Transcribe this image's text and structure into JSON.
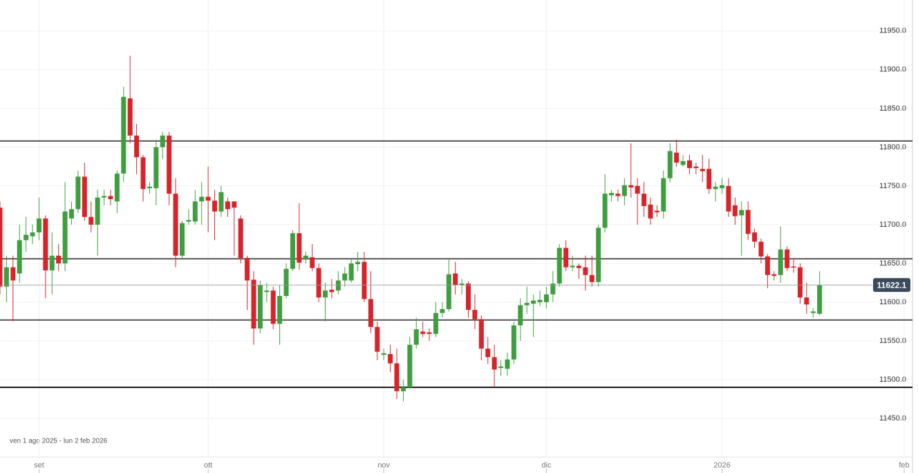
{
  "chart_data": {
    "type": "candlestick",
    "date_range": "ven 1 ago 2025 - lun 2 feb 2026",
    "categories": [
      null,
      null,
      null,
      null,
      null,
      null,
      "set",
      null,
      null,
      null,
      null,
      null,
      null,
      null,
      null,
      null,
      null,
      null,
      null,
      null,
      null,
      null,
      null,
      null,
      null,
      null,
      null,
      null,
      null,
      null,
      null,
      null,
      "ott",
      null,
      null,
      null,
      null,
      null,
      null,
      null,
      null,
      null,
      null,
      null,
      null,
      null,
      null,
      null,
      null,
      null,
      null,
      null,
      null,
      null,
      null,
      null,
      null,
      null,
      null,
      "nov",
      null,
      null,
      null,
      null,
      null,
      null,
      null,
      null,
      null,
      null,
      null,
      null,
      null,
      null,
      null,
      null,
      null,
      null,
      null,
      null,
      null,
      null,
      null,
      null,
      "dic",
      null,
      null,
      null,
      null,
      null,
      null,
      null,
      null,
      null,
      null,
      null,
      null,
      null,
      null,
      null,
      null,
      null,
      null,
      null,
      null,
      null,
      null,
      null,
      null,
      null,
      null,
      "2026",
      null,
      null,
      null,
      null,
      null,
      null,
      null,
      null,
      null,
      null,
      null,
      null,
      null,
      null,
      null,
      null,
      null,
      null,
      null,
      null,
      null,
      null,
      null,
      null,
      null,
      null,
      null,
      "feb"
    ],
    "open": [
      11722,
      11620,
      11645,
      11637,
      11680,
      11685,
      11690,
      11708,
      11641,
      11660,
      11650,
      11708,
      11720,
      11762,
      11710,
      11700,
      11735,
      11737,
      11730,
      11766,
      11863,
      11815,
      11787,
      11747,
      11747,
      11800,
      11815,
      11740,
      11660,
      11704,
      11704,
      11730,
      11736,
      11731,
      11717,
      11730,
      11730,
      11708,
      11657,
      11629,
      11566,
      11613,
      11615,
      11572,
      11608,
      11643,
      11689,
      11656,
      11658,
      11644,
      11606,
      11616,
      11615,
      11628,
      11628,
      11649,
      11652,
      11604,
      11568,
      11532,
      11533,
      11521,
      11485,
      11490,
      11545,
      11562,
      11561,
      11559,
      11586,
      11591,
      11637,
      11622,
      11624,
      11590,
      11578,
      11540,
      11529,
      11515,
      11514,
      11526,
      11570,
      11596,
      11598,
      11600,
      11600,
      11610,
      11624,
      11670,
      11645,
      11647,
      11645,
      11635,
      11626,
      11696,
      11738,
      11740,
      11737,
      11751,
      11750,
      11740,
      11726,
      11718,
      11717,
      11760,
      11793,
      11777,
      11783,
      11775,
      11772,
      11772,
      11746,
      11747,
      11750,
      11725,
      11712,
      11719,
      11690,
      11678,
      11659,
      11636,
      11635,
      11668,
      11646,
      11645,
      11606,
      11586,
      11585,
      null,
      null,
      null,
      null,
      null,
      null,
      null,
      null,
      null,
      null,
      null,
      null,
      null
    ],
    "high": [
      11730,
      11660,
      11660,
      11700,
      11710,
      11700,
      11735,
      11712,
      11690,
      11675,
      11755,
      11730,
      11770,
      11780,
      11730,
      11745,
      11745,
      11745,
      11770,
      11878,
      11918,
      11830,
      11790,
      11755,
      11810,
      11820,
      11820,
      11760,
      11705,
      11720,
      11745,
      11755,
      11775,
      11745,
      11750,
      11735,
      11730,
      11712,
      11660,
      11640,
      11628,
      11625,
      11620,
      11622,
      11650,
      11693,
      11728,
      11665,
      11675,
      11650,
      11625,
      11630,
      11640,
      11645,
      11655,
      11665,
      11665,
      11640,
      11575,
      11540,
      11545,
      11540,
      11500,
      11555,
      11580,
      11575,
      11566,
      11600,
      11600,
      11655,
      11652,
      11630,
      11627,
      11610,
      11583,
      11555,
      11545,
      11525,
      11535,
      11575,
      11605,
      11620,
      11610,
      11615,
      11620,
      11640,
      11675,
      11680,
      11660,
      11650,
      11660,
      11660,
      11700,
      11765,
      11745,
      11745,
      11760,
      11805,
      11760,
      11755,
      11735,
      11725,
      11770,
      11805,
      11810,
      11790,
      11790,
      11780,
      11790,
      11785,
      11755,
      11760,
      11760,
      11735,
      11730,
      11730,
      11695,
      11682,
      11662,
      11640,
      11698,
      11672,
      11655,
      11650,
      11625,
      11592,
      11640,
      null,
      null,
      null,
      null,
      null,
      null,
      null,
      null,
      null,
      null,
      null,
      null,
      null
    ],
    "low": [
      11610,
      11600,
      11575,
      11625,
      11665,
      11675,
      11680,
      11605,
      11610,
      11640,
      11640,
      11700,
      11715,
      11705,
      11690,
      11660,
      11725,
      11725,
      11715,
      11755,
      11805,
      11765,
      11730,
      11740,
      11725,
      11785,
      11725,
      11645,
      11655,
      11700,
      11700,
      11700,
      11690,
      11680,
      11710,
      11710,
      11660,
      11650,
      11590,
      11545,
      11560,
      11600,
      11565,
      11545,
      11605,
      11640,
      11642,
      11650,
      11640,
      11600,
      11575,
      11605,
      11610,
      11620,
      11625,
      11640,
      11600,
      11560,
      11525,
      11525,
      11510,
      11475,
      11472,
      11488,
      11540,
      11555,
      11550,
      11555,
      11580,
      11588,
      11610,
      11610,
      11580,
      11565,
      11525,
      11520,
      11490,
      11505,
      11505,
      11520,
      11550,
      11585,
      11555,
      11595,
      11592,
      11600,
      11620,
      11640,
      11640,
      11630,
      11615,
      11620,
      11620,
      11690,
      11730,
      11730,
      11725,
      11735,
      11700,
      11710,
      11700,
      11710,
      11708,
      11755,
      11775,
      11775,
      11765,
      11765,
      11755,
      11740,
      11730,
      11740,
      11710,
      11700,
      11660,
      11680,
      11670,
      11650,
      11618,
      11628,
      11625,
      11640,
      11638,
      11598,
      11585,
      11580,
      11583,
      null,
      null,
      null,
      null,
      null,
      null,
      null,
      null,
      null,
      null,
      null,
      null,
      null
    ],
    "close": [
      11620,
      11645,
      11628,
      11680,
      11687,
      11690,
      11708,
      11641,
      11660,
      11650,
      11717,
      11720,
      11762,
      11710,
      11700,
      11735,
      11737,
      11733,
      11766,
      11865,
      11815,
      11787,
      11746,
      11749,
      11800,
      11815,
      11740,
      11660,
      11702,
      11706,
      11730,
      11736,
      11731,
      11717,
      11742,
      11720,
      11722,
      11657,
      11628,
      11566,
      11622,
      11615,
      11572,
      11608,
      11643,
      11689,
      11651,
      11660,
      11644,
      11606,
      11615,
      11613,
      11628,
      11637,
      11650,
      11652,
      11604,
      11568,
      11536,
      11534,
      11521,
      11485,
      11490,
      11545,
      11565,
      11559,
      11559,
      11586,
      11591,
      11636,
      11622,
      11624,
      11590,
      11578,
      11540,
      11529,
      11513,
      11517,
      11526,
      11570,
      11596,
      11599,
      11602,
      11603,
      11610,
      11624,
      11670,
      11645,
      11647,
      11644,
      11635,
      11626,
      11696,
      11740,
      11741,
      11737,
      11751,
      11748,
      11740,
      11724,
      11708,
      11716,
      11760,
      11795,
      11780,
      11782,
      11773,
      11773,
      11769,
      11746,
      11749,
      11751,
      11717,
      11711,
      11719,
      11688,
      11678,
      11659,
      11635,
      11634,
      11668,
      11644,
      11645,
      11606,
      11597,
      11588,
      11622.1,
      null,
      null,
      null,
      null,
      null,
      null,
      null,
      null,
      null,
      null,
      null,
      null,
      null
    ],
    "up_color": "#3f9e3f",
    "down_color": "#d8232a",
    "ylim": [
      11400,
      11990
    ],
    "yticks": [
      {
        "value": 11450,
        "label": "11450.0"
      },
      {
        "value": 11500,
        "label": "11500.0"
      },
      {
        "value": 11550,
        "label": "11550.0"
      },
      {
        "value": 11600,
        "label": "11600.0"
      },
      {
        "value": 11650,
        "label": "11650.0"
      },
      {
        "value": 11700,
        "label": "11700.0"
      },
      {
        "value": 11750,
        "label": "11750.0"
      },
      {
        "value": 11800,
        "label": "11800.0"
      },
      {
        "value": 11850,
        "label": "11850.0"
      },
      {
        "value": 11900,
        "label": "11900.0"
      },
      {
        "value": 11950,
        "label": "11950.0"
      }
    ],
    "grid": true,
    "levels": [
      11808,
      11656,
      11577,
      11490
    ],
    "last_price": 11622.1
  }
}
